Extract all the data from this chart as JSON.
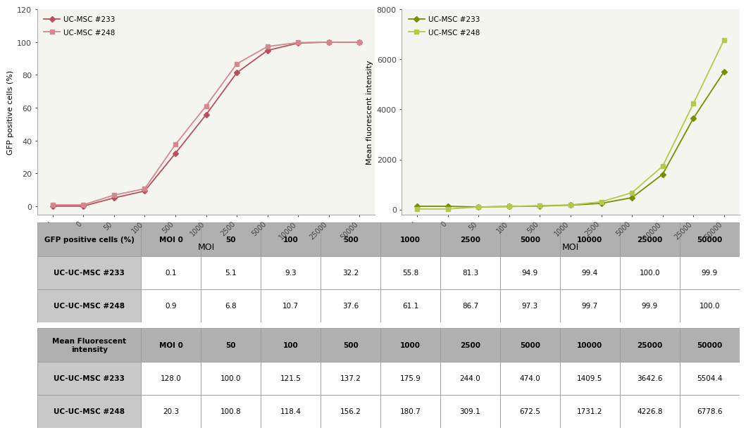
{
  "x_labels": [
    "'",
    "0",
    "50",
    "100",
    "500",
    "1000",
    "2500",
    "5000",
    "10000",
    "25000",
    "50000"
  ],
  "x_positions": [
    0,
    1,
    2,
    3,
    4,
    5,
    6,
    7,
    8,
    9,
    10
  ],
  "gfp_233": [
    0.1,
    0.1,
    5.1,
    9.3,
    32.2,
    55.8,
    81.3,
    94.9,
    99.4,
    100.0,
    99.9
  ],
  "gfp_248": [
    0.9,
    0.9,
    6.8,
    10.7,
    37.6,
    61.1,
    86.7,
    97.3,
    99.7,
    99.9,
    100.0
  ],
  "mfi_233": [
    128.0,
    128.0,
    100.0,
    121.5,
    137.2,
    175.9,
    244.0,
    474.0,
    1409.5,
    3642.6,
    5504.4
  ],
  "mfi_248": [
    20.3,
    20.3,
    100.8,
    118.4,
    156.2,
    180.7,
    309.1,
    672.5,
    1731.2,
    4226.8,
    6778.6
  ],
  "color_233_line": "#b5515d",
  "color_248_line": "#d4888e",
  "color_233_mfi": "#7a8c00",
  "color_248_mfi": "#b5c84a",
  "gfp_ylabel": "GFP positive cells (%)",
  "mfi_ylabel": "Mean fluorescent intensity",
  "xlabel": "MOI",
  "gfp_ylim": [
    -5,
    120
  ],
  "mfi_ylim": [
    -200,
    8000
  ],
  "gfp_yticks": [
    0,
    20,
    40,
    60,
    80,
    100,
    120
  ],
  "mfi_yticks": [
    0,
    2000,
    4000,
    6000,
    8000
  ],
  "legend_233": "UC-MSC #233",
  "legend_248": "UC-MSC #248",
  "table1_header": [
    "GFP positive cells (%)",
    "MOI 0",
    "50",
    "100",
    "500",
    "1000",
    "2500",
    "5000",
    "10000",
    "25000",
    "50000"
  ],
  "table1_row1": [
    "UC-UC-MSC #233",
    "0.1",
    "5.1",
    "9.3",
    "32.2",
    "55.8",
    "81.3",
    "94.9",
    "99.4",
    "100.0",
    "99.9"
  ],
  "table1_row2": [
    "UC-UC-MSC #248",
    "0.9",
    "6.8",
    "10.7",
    "37.6",
    "61.1",
    "86.7",
    "97.3",
    "99.7",
    "99.9",
    "100.0"
  ],
  "table2_header": [
    "Mean Fluorescent\nintensity",
    "MOI 0",
    "50",
    "100",
    "500",
    "1000",
    "2500",
    "5000",
    "10000",
    "25000",
    "50000"
  ],
  "table2_row1": [
    "UC-UC-MSC #233",
    "128.0",
    "100.0",
    "121.5",
    "137.2",
    "175.9",
    "244.0",
    "474.0",
    "1409.5",
    "3642.6",
    "5504.4"
  ],
  "table2_row2": [
    "UC-UC-MSC #248",
    "20.3",
    "100.8",
    "118.4",
    "156.2",
    "180.7",
    "309.1",
    "672.5",
    "1731.2",
    "4226.8",
    "6778.6"
  ],
  "bg_color": "#ffffff",
  "chart_bg": "#f5f5f0",
  "table_header_color": "#b0b0b0",
  "table_label_color": "#c8c8c8",
  "table_data_color": "#ffffff",
  "table_border_color": "#999999"
}
